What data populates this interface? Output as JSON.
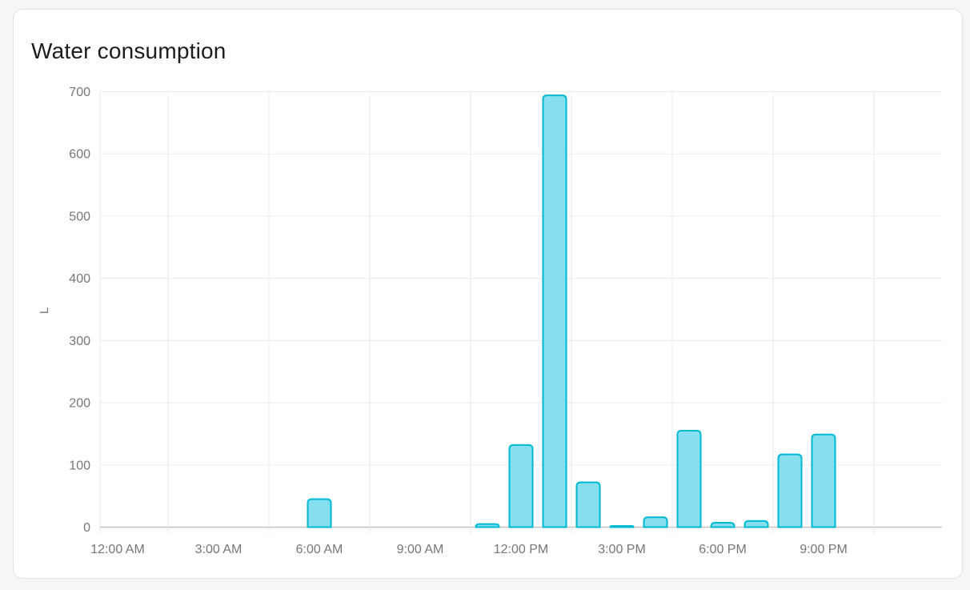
{
  "card": {
    "title": "Water consumption"
  },
  "chart_data": {
    "type": "bar",
    "title": "Water consumption",
    "xlabel": "",
    "ylabel": "L",
    "ylim": [
      0,
      700
    ],
    "y_ticks": [
      0,
      100,
      200,
      300,
      400,
      500,
      600,
      700
    ],
    "x_tick_labels": [
      "12:00 AM",
      "3:00 AM",
      "6:00 AM",
      "9:00 AM",
      "12:00 PM",
      "3:00 PM",
      "6:00 PM",
      "9:00 PM"
    ],
    "x_tick_hours": [
      0,
      3,
      6,
      9,
      12,
      15,
      18,
      21
    ],
    "grid": true,
    "legend_position": "none",
    "series": [
      {
        "name": "Water consumption",
        "unit": "L",
        "points": [
          {
            "hour": 6,
            "time": "6:00 AM",
            "value": 45
          },
          {
            "hour": 11,
            "time": "11:00 AM",
            "value": 5
          },
          {
            "hour": 12,
            "time": "12:00 PM",
            "value": 132
          },
          {
            "hour": 13,
            "time": "1:00 PM",
            "value": 694
          },
          {
            "hour": 14,
            "time": "2:00 PM",
            "value": 72
          },
          {
            "hour": 15,
            "time": "3:00 PM",
            "value": 2
          },
          {
            "hour": 16,
            "time": "4:00 PM",
            "value": 16
          },
          {
            "hour": 17,
            "time": "5:00 PM",
            "value": 155
          },
          {
            "hour": 18,
            "time": "6:00 PM",
            "value": 7
          },
          {
            "hour": 19,
            "time": "7:00 PM",
            "value": 10
          },
          {
            "hour": 20,
            "time": "8:00 PM",
            "value": 117
          },
          {
            "hour": 21,
            "time": "9:00 PM",
            "value": 149
          }
        ]
      }
    ],
    "colors": {
      "bar_fill": "#85dfee",
      "bar_border": "#00b9d4",
      "grid_line": "#ebebeb",
      "vertical_grid_line": "#e8e8e8",
      "zero_axis_line": "#c2c2c2",
      "tick_label": "#767676",
      "title_text": "#1c1c1c",
      "card_background": "#ffffff",
      "card_border": "#e1e1e1",
      "page_background": "#f6f6f6"
    }
  }
}
